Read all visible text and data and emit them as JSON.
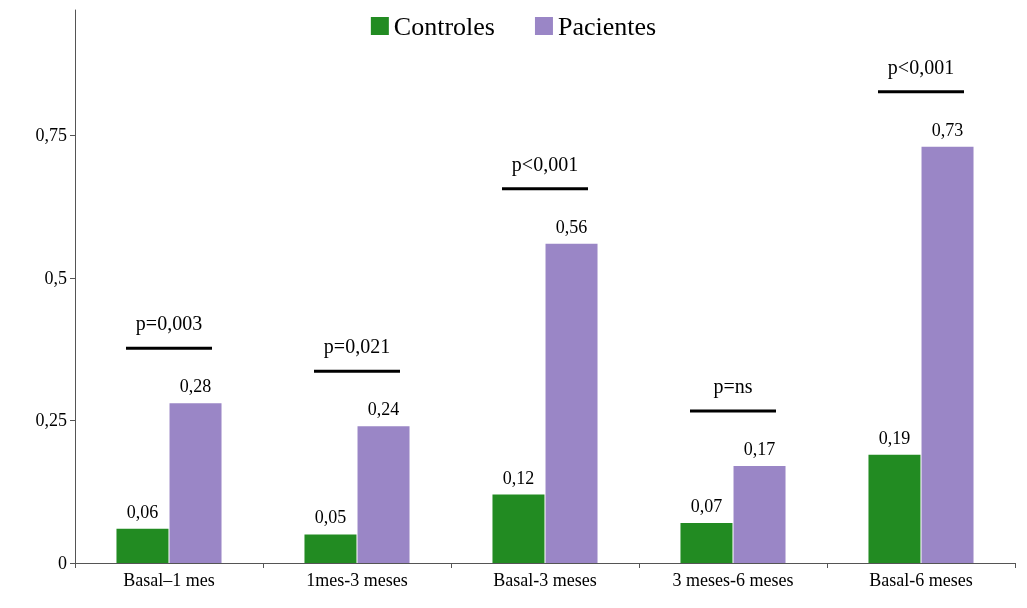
{
  "chart_data": {
    "type": "bar",
    "categories": [
      "Basal–1 mes",
      "1mes-3 meses",
      "Basal-3 meses",
      "3 meses-6 meses",
      "Basal-6 meses"
    ],
    "series": [
      {
        "name": "Controles",
        "color": "#228b22",
        "values": [
          0.06,
          0.05,
          0.12,
          0.07,
          0.19
        ],
        "value_labels": [
          "0,06",
          "0,05",
          "0,12",
          "0,07",
          "0,19"
        ]
      },
      {
        "name": "Pacientes",
        "color": "#9a86c6",
        "values": [
          0.28,
          0.24,
          0.56,
          0.17,
          0.73
        ],
        "value_labels": [
          "0,28",
          "0,24",
          "0,56",
          "0,17",
          "0,73"
        ]
      }
    ],
    "ylim": [
      0,
      0.97
    ],
    "yticks": [
      0,
      {
        "value": 0.25,
        "label": "0,25"
      },
      {
        "value": 0.5,
        "label": "0,5"
      },
      {
        "value": 0.75,
        "label": "0,75"
      }
    ],
    "grid": false,
    "legend": "top",
    "annotations": [
      "p=0,003",
      "p=0,021",
      "p<0,001",
      "p=ns",
      "p<0,001"
    ]
  }
}
